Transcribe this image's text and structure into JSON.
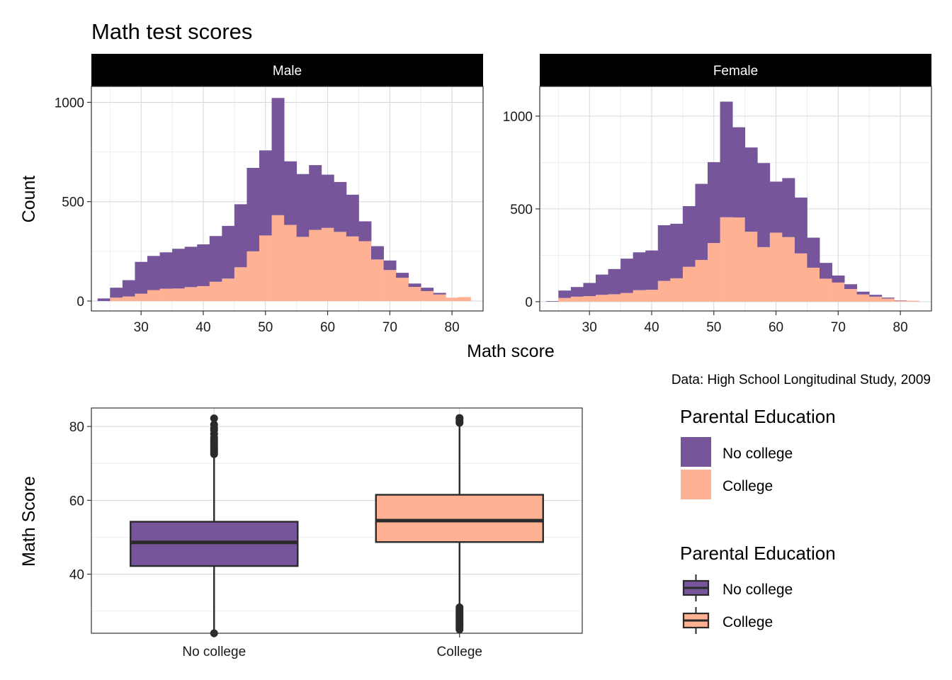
{
  "title": "Math test scores",
  "caption": "Data: High School Longitudinal Study, 2009",
  "colors": {
    "no_college": "#76559a",
    "college": "#ffb194",
    "strip_bg": "#000000",
    "box_line": "#2a2a2a"
  },
  "chart_data": [
    {
      "type": "bar",
      "subtype": "stacked-histogram",
      "x_label": "Math score",
      "y_label": "Count",
      "facets": [
        {
          "label": "Male",
          "x_ticks": [
            30,
            40,
            50,
            60,
            70,
            80
          ],
          "y_ticks": [
            0,
            500,
            1000
          ],
          "xlim": [
            22,
            85
          ],
          "ylim": [
            -50,
            1080
          ],
          "bin_width": 2,
          "bin_starts": [
            23,
            25,
            27,
            29,
            31,
            33,
            35,
            37,
            39,
            41,
            43,
            45,
            47,
            49,
            51,
            53,
            55,
            57,
            59,
            61,
            63,
            65,
            67,
            69,
            71,
            73,
            75,
            77,
            79,
            81
          ],
          "series": [
            {
              "name": "No college",
              "values": [
                13,
                50,
                82,
                160,
                172,
                183,
                200,
                203,
                210,
                230,
                265,
                317,
                420,
                428,
                590,
                320,
                316,
                326,
                268,
                251,
                210,
                100,
                67,
                48,
                25,
                17,
                17,
                8,
                0,
                0
              ]
            },
            {
              "name": "College",
              "values": [
                0,
                17,
                23,
                37,
                55,
                62,
                63,
                70,
                75,
                97,
                113,
                170,
                250,
                330,
                432,
                383,
                323,
                358,
                368,
                348,
                325,
                301,
                209,
                156,
                117,
                71,
                50,
                33,
                17,
                20
              ]
            }
          ]
        },
        {
          "label": "Female",
          "x_ticks": [
            30,
            40,
            50,
            60,
            70,
            80
          ],
          "y_ticks": [
            0,
            500,
            1000
          ],
          "xlim": [
            22,
            85
          ],
          "ylim": [
            -50,
            1160
          ],
          "bin_width": 2,
          "bin_starts": [
            23,
            25,
            27,
            29,
            31,
            33,
            35,
            37,
            39,
            41,
            43,
            45,
            47,
            49,
            51,
            53,
            55,
            57,
            59,
            61,
            63,
            65,
            67,
            69,
            71,
            73,
            75,
            77,
            79,
            81
          ],
          "series": [
            {
              "name": "No college",
              "values": [
                3,
                40,
                52,
                71,
                109,
                136,
                185,
                204,
                212,
                300,
                294,
                327,
                410,
                436,
                623,
                486,
                454,
                453,
                275,
                318,
                301,
                162,
                85,
                38,
                26,
                15,
                10,
                5,
                2,
                0
              ]
            },
            {
              "name": "College",
              "values": [
                0,
                20,
                27,
                30,
                37,
                40,
                47,
                62,
                64,
                112,
                126,
                188,
                225,
                316,
                455,
                454,
                377,
                294,
                372,
                348,
                260,
                183,
                124,
                103,
                68,
                39,
                27,
                17,
                5,
                5
              ]
            }
          ]
        }
      ],
      "legend": {
        "title": "Parental Education",
        "entries": [
          "No college",
          "College"
        ],
        "position": "right"
      }
    },
    {
      "type": "boxplot",
      "x_label": "",
      "y_label": "Math Score",
      "categories": [
        "No college",
        "College"
      ],
      "ylim": [
        24,
        85
      ],
      "y_ticks": [
        40,
        60,
        80
      ],
      "boxes": [
        {
          "name": "No college",
          "min": 24,
          "q1": 42.2,
          "median": 48.6,
          "q3": 54.2,
          "max": 72.2,
          "outliers": [
            24,
            72.5,
            73,
            73.5,
            74,
            74.5,
            75,
            75.5,
            76,
            76.5,
            77,
            78,
            79,
            79.5,
            80.5,
            82.2
          ]
        },
        {
          "name": "College",
          "min": 31.8,
          "q1": 48.7,
          "median": 54.5,
          "q3": 61.5,
          "max": 80.5,
          "outliers": [
            25,
            25.5,
            26,
            26.5,
            27,
            27.5,
            28,
            28.5,
            29,
            29.5,
            30,
            30.5,
            31,
            81,
            81.5,
            82,
            82.3
          ]
        }
      ],
      "legend": {
        "title": "Parental Education",
        "entries": [
          "No college",
          "College"
        ],
        "position": "right"
      }
    }
  ]
}
